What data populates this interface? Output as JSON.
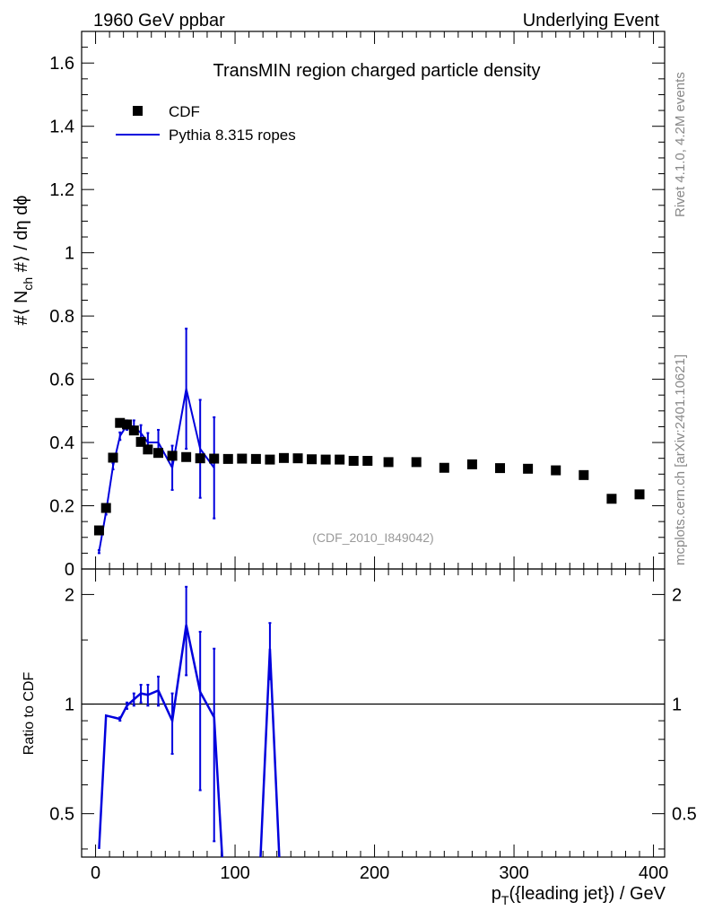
{
  "header": {
    "left": "1960 GeV ppbar",
    "right": "Underlying Event"
  },
  "side_text": {
    "top": "Rivet 4.1.0,  4.2M events",
    "bottom": "mcplots.cern.ch [arXiv:2401.10621]"
  },
  "analysis_tag": "(CDF_2010_I849042)",
  "colors": {
    "data": "#000000",
    "mc": "#0000dd"
  },
  "chart_data": [
    {
      "type": "scatter",
      "title": "TransMIN region charged particle density",
      "ylabel_parts": {
        "hash1": "#⟨ N",
        "sub": "ch",
        "rest": " #⟩ / dη dϕ"
      },
      "xlim": [
        -10,
        408
      ],
      "ylim": [
        0,
        1.7
      ],
      "yticks": [
        0,
        0.2,
        0.4,
        0.6,
        0.8,
        1,
        1.2,
        1.4,
        1.6
      ],
      "ytick_labels": [
        "0",
        "0.2",
        "0.4",
        "0.6",
        "0.8",
        "1",
        "1.2",
        "1.4",
        "1.6"
      ],
      "legend": [
        {
          "label": "CDF",
          "style": "marker"
        },
        {
          "label": "Pythia 8.315 ropes",
          "style": "line"
        }
      ],
      "series": [
        {
          "name": "CDF",
          "x": [
            2.5,
            7.5,
            12.5,
            17.5,
            22.5,
            27.5,
            32.5,
            37.5,
            45,
            55,
            65,
            75,
            85,
            95,
            105,
            115,
            125,
            135,
            145,
            155,
            165,
            175,
            185,
            195,
            210,
            230,
            250,
            270,
            290,
            310,
            330,
            350,
            370,
            390
          ],
          "y": [
            0.122,
            0.193,
            0.352,
            0.462,
            0.457,
            0.438,
            0.402,
            0.378,
            0.367,
            0.358,
            0.354,
            0.35,
            0.349,
            0.348,
            0.349,
            0.348,
            0.346,
            0.351,
            0.35,
            0.347,
            0.346,
            0.346,
            0.342,
            0.342,
            0.338,
            0.338,
            0.32,
            0.331,
            0.319,
            0.317,
            0.312,
            0.297,
            0.222,
            0.236
          ]
        },
        {
          "name": "Pythia 8.315 ropes",
          "x": [
            2.5,
            7.5,
            12.5,
            17.5,
            22.5,
            27.5,
            32.5,
            37.5,
            45,
            55,
            65,
            75,
            85
          ],
          "y": [
            0.055,
            0.18,
            0.325,
            0.42,
            0.455,
            0.45,
            0.43,
            0.4,
            0.4,
            0.32,
            0.57,
            0.38,
            0.32
          ],
          "err": [
            0.005,
            0.008,
            0.01,
            0.012,
            0.015,
            0.02,
            0.025,
            0.03,
            0.04,
            0.07,
            0.19,
            0.155,
            0.16
          ]
        }
      ]
    },
    {
      "type": "line",
      "ylabel": "Ratio to CDF",
      "xlabel_parts": {
        "p": "p",
        "sub": "T",
        "rest": "({leading jet}) / GeV"
      },
      "xlim": [
        -10,
        408
      ],
      "ylim": [
        0.38,
        2.35
      ],
      "log_y": true,
      "yticks": [
        0.5,
        1,
        2
      ],
      "ytick_labels": [
        "0.5",
        "1",
        "2"
      ],
      "xticks": [
        0,
        100,
        200,
        300,
        400
      ],
      "xtick_labels": [
        "0",
        "100",
        "200",
        "300",
        "400"
      ],
      "reference_line": 1,
      "series": [
        {
          "name": "Pythia 8.315 ropes / CDF",
          "x": [
            2.5,
            7.5,
            12.5,
            17.5,
            22.5,
            27.5,
            32.5,
            37.5,
            45,
            55,
            65,
            75,
            85,
            95,
            115,
            125,
            135
          ],
          "y": [
            0.4,
            0.93,
            0.92,
            0.91,
            0.99,
            1.03,
            1.07,
            1.06,
            1.09,
            0.9,
            1.65,
            1.08,
            0.92,
            0.2,
            0.2,
            1.42,
            0.2
          ],
          "err": [
            0,
            0,
            0,
            0.01,
            0.02,
            0.04,
            0.06,
            0.07,
            0.1,
            0.17,
            0.45,
            0.5,
            0.5,
            0,
            0,
            0.25,
            0
          ]
        }
      ]
    }
  ]
}
